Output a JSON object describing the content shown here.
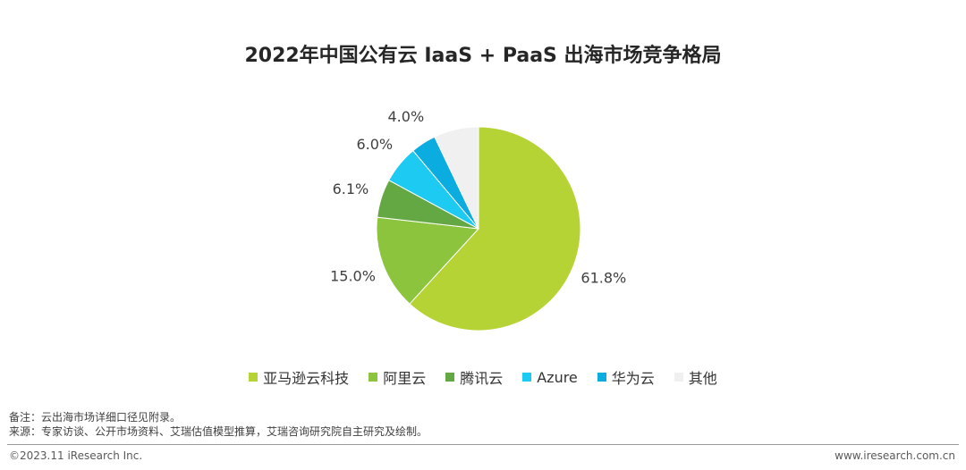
{
  "chart_data": {
    "type": "pie",
    "title": "2022年中国公有云 IaaS + PaaS 出海市场竞争格局",
    "slices": [
      {
        "name": "亚马逊云科技",
        "value": 61.8,
        "label": "61.8%",
        "color": "#b5d334"
      },
      {
        "name": "阿里云",
        "value": 15.0,
        "label": "15.0%",
        "color": "#8cc43e"
      },
      {
        "name": "腾讯云",
        "value": 6.1,
        "label": "6.1%",
        "color": "#64a844"
      },
      {
        "name": "Azure",
        "value": 6.0,
        "label": "6.0%",
        "color": "#1ccaf2"
      },
      {
        "name": "华为云",
        "value": 4.0,
        "label": "4.0%",
        "color": "#0bacdf"
      },
      {
        "name": "其他",
        "value": 7.1,
        "label": "",
        "color": "#f0f0f0"
      }
    ],
    "legend_position": "bottom"
  },
  "notes": {
    "note": "备注：云出海市场详细口径见附录。",
    "source": "来源：专家访谈、公开市场资料、艾瑞估值模型推算，艾瑞咨询研究院自主研究及绘制。"
  },
  "footer": {
    "copyright": "©2023.11 iResearch Inc.",
    "website": "www.iresearch.com.cn"
  }
}
